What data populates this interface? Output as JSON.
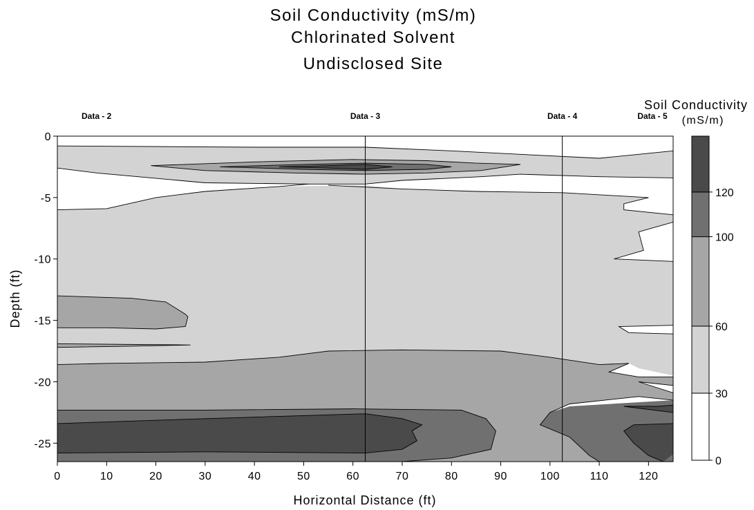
{
  "chart_data": {
    "type": "contour",
    "title_lines": [
      "Soil Conductivity (mS/m)",
      "Chlorinated Solvent",
      "Undisclosed Site"
    ],
    "xlabel": "Horizontal Distance (ft)",
    "ylabel": "Depth (ft)",
    "xlim": [
      0,
      125
    ],
    "ylim": [
      -26.5,
      0
    ],
    "x_ticks": [
      "0",
      "10",
      "20",
      "30",
      "40",
      "50",
      "60",
      "70",
      "80",
      "90",
      "100",
      "110",
      "120"
    ],
    "x_tick_values": [
      0,
      10,
      20,
      30,
      40,
      50,
      60,
      70,
      80,
      90,
      100,
      110,
      120
    ],
    "y_ticks": [
      "0",
      "-5",
      "-10",
      "-15",
      "-20",
      "-25"
    ],
    "y_tick_values": [
      0,
      -5,
      -10,
      -15,
      -20,
      -25
    ],
    "wells": [
      {
        "label": "Data - 2",
        "x": 0
      },
      {
        "label": "Data - 3",
        "x": 62.5
      },
      {
        "label": "Data - 4",
        "x": 102.5
      },
      {
        "label": "Data - 5",
        "x": 125
      }
    ],
    "legend": {
      "title": "Soil Conductivity",
      "unit": "(mS/m)",
      "levels": [
        0,
        30,
        60,
        100,
        120
      ],
      "level_labels": [
        "0",
        "30",
        "60",
        "100",
        "120"
      ],
      "colors": [
        "#ffffff",
        "#d3d3d3",
        "#a6a6a6",
        "#707070",
        "#4a4a4a"
      ]
    },
    "contour_bands": [
      {
        "level_min": 30,
        "level_max": 60,
        "color": "#d3d3d3",
        "points": [
          [
            0,
            -0.8
          ],
          [
            20,
            -0.8
          ],
          [
            40,
            -0.9
          ],
          [
            62.5,
            -0.9
          ],
          [
            80,
            -1.2
          ],
          [
            95,
            -1.5
          ],
          [
            110,
            -1.8
          ],
          [
            125,
            -1.2
          ],
          [
            125,
            -3.4
          ],
          [
            110,
            -3.3
          ],
          [
            94,
            -3.1
          ],
          [
            86,
            -3.3
          ],
          [
            70,
            -3.6
          ],
          [
            62.5,
            -3.9
          ],
          [
            51,
            -3.9
          ],
          [
            30,
            -3.8
          ],
          [
            8,
            -3.0
          ],
          [
            0,
            -2.6
          ]
        ]
      },
      {
        "level_min": 30,
        "level_max": 60,
        "color": "#d3d3d3",
        "points": [
          [
            0,
            -6.0
          ],
          [
            10,
            -5.9
          ],
          [
            20,
            -5.0
          ],
          [
            30,
            -4.5
          ],
          [
            45,
            -4.1
          ],
          [
            62.5,
            -4.0
          ],
          [
            70,
            -4.3
          ],
          [
            85,
            -4.5
          ],
          [
            102.5,
            -4.6
          ],
          [
            120,
            -5.0
          ],
          [
            115,
            -5.5
          ],
          [
            115,
            -6.0
          ],
          [
            125,
            -6.4
          ],
          [
            125,
            -7.0
          ],
          [
            118,
            -7.8
          ],
          [
            119,
            -9.3
          ],
          [
            113,
            -10.0
          ],
          [
            125,
            -10.2
          ],
          [
            125,
            -15.4
          ],
          [
            114,
            -15.5
          ],
          [
            116,
            -16.0
          ],
          [
            125,
            -16.1
          ],
          [
            125,
            -19.5
          ],
          [
            118,
            -18.9
          ],
          [
            116,
            -18.5
          ],
          [
            110,
            -18.6
          ],
          [
            100,
            -18.0
          ],
          [
            90,
            -17.5
          ],
          [
            70,
            -17.4
          ],
          [
            55,
            -17.5
          ],
          [
            45,
            -18.0
          ],
          [
            30,
            -18.4
          ],
          [
            10,
            -18.5
          ],
          [
            0,
            -18.6
          ]
        ]
      },
      {
        "level_min": 60,
        "level_max": 100,
        "color": "#a6a6a6",
        "points": [
          [
            0,
            -18.6
          ],
          [
            10,
            -18.5
          ],
          [
            30,
            -18.4
          ],
          [
            45,
            -18.0
          ],
          [
            55,
            -17.5
          ],
          [
            70,
            -17.4
          ],
          [
            90,
            -17.5
          ],
          [
            100,
            -18.0
          ],
          [
            110,
            -18.6
          ],
          [
            116,
            -18.5
          ],
          [
            112,
            -19.2
          ],
          [
            118,
            -19.6
          ],
          [
            125,
            -19.6
          ],
          [
            125,
            -20.3
          ],
          [
            118,
            -20.0
          ],
          [
            125,
            -20.9
          ],
          [
            125,
            -21.5
          ],
          [
            118,
            -21.2
          ],
          [
            104,
            -21.8
          ],
          [
            100,
            -22.5
          ],
          [
            98,
            -23.5
          ],
          [
            104,
            -24.5
          ],
          [
            108,
            -26.0
          ],
          [
            110,
            -26.5
          ],
          [
            70,
            -26.5
          ],
          [
            80,
            -26.2
          ],
          [
            88,
            -25.5
          ],
          [
            89,
            -24.0
          ],
          [
            87,
            -23.0
          ],
          [
            82,
            -22.3
          ],
          [
            60,
            -22.2
          ],
          [
            30,
            -22.3
          ],
          [
            0,
            -22.3
          ]
        ]
      },
      {
        "level_min": 60,
        "level_max": 100,
        "color": "#a6a6a6",
        "points": [
          [
            0,
            -13.0
          ],
          [
            15,
            -13.2
          ],
          [
            22,
            -13.5
          ],
          [
            26,
            -14.5
          ],
          [
            26.5,
            -14.7
          ],
          [
            26,
            -15.5
          ],
          [
            20,
            -15.7
          ],
          [
            10,
            -15.6
          ],
          [
            0,
            -15.6
          ]
        ]
      },
      {
        "level_min": 60,
        "level_max": 100,
        "color": "#a6a6a6",
        "points": [
          [
            0,
            -16.9
          ],
          [
            27,
            -17.0
          ],
          [
            15,
            -17.1
          ],
          [
            0,
            -17.2
          ]
        ]
      },
      {
        "level_min": 60,
        "level_max": 100,
        "color": "#a6a6a6",
        "points": [
          [
            19,
            -2.4
          ],
          [
            40,
            -2.1
          ],
          [
            60,
            -1.9
          ],
          [
            75,
            -2.0
          ],
          [
            85,
            -2.2
          ],
          [
            94,
            -2.3
          ],
          [
            86,
            -2.8
          ],
          [
            75,
            -3.0
          ],
          [
            62.5,
            -3.1
          ],
          [
            48,
            -3.0
          ],
          [
            30,
            -2.8
          ]
        ]
      },
      {
        "level_min": 100,
        "level_max": 120,
        "color": "#707070",
        "points": [
          [
            0,
            -22.3
          ],
          [
            30,
            -22.3
          ],
          [
            60,
            -22.2
          ],
          [
            82,
            -22.3
          ],
          [
            87,
            -23.0
          ],
          [
            89,
            -24.0
          ],
          [
            88,
            -25.5
          ],
          [
            80,
            -26.2
          ],
          [
            70,
            -26.5
          ],
          [
            0,
            -26.5
          ]
        ]
      },
      {
        "level_min": 100,
        "level_max": 120,
        "color": "#707070",
        "points": [
          [
            104,
            -22.0
          ],
          [
            125,
            -21.5
          ],
          [
            125,
            -26.5
          ],
          [
            110,
            -26.5
          ],
          [
            108,
            -26.0
          ],
          [
            104,
            -24.5
          ],
          [
            98,
            -23.5
          ],
          [
            100,
            -22.5
          ]
        ]
      },
      {
        "level_min": 100,
        "level_max": 120,
        "color": "#707070",
        "points": [
          [
            33,
            -2.5
          ],
          [
            50,
            -2.3
          ],
          [
            62.5,
            -2.2
          ],
          [
            75,
            -2.3
          ],
          [
            80,
            -2.5
          ],
          [
            75,
            -2.7
          ],
          [
            62.5,
            -2.8
          ],
          [
            50,
            -2.7
          ]
        ]
      },
      {
        "level_min": 120,
        "level_max": 140,
        "color": "#4a4a4a",
        "points": [
          [
            0,
            -23.4
          ],
          [
            30,
            -23.0
          ],
          [
            62.5,
            -22.6
          ],
          [
            70,
            -23.0
          ],
          [
            74,
            -23.5
          ],
          [
            72,
            -24.0
          ],
          [
            73,
            -24.8
          ],
          [
            70,
            -25.5
          ],
          [
            62.5,
            -25.8
          ],
          [
            30,
            -25.7
          ],
          [
            0,
            -25.8
          ]
        ]
      },
      {
        "level_min": 120,
        "level_max": 140,
        "color": "#4a4a4a",
        "points": [
          [
            115,
            -22.0
          ],
          [
            122,
            -22.0
          ],
          [
            125,
            -21.9
          ],
          [
            125,
            -25.9
          ],
          [
            123,
            -26.5
          ],
          [
            120,
            -26.0
          ],
          [
            117,
            -25.0
          ],
          [
            115,
            -24.0
          ],
          [
            117,
            -23.5
          ],
          [
            125,
            -23.4
          ],
          [
            125,
            -22.5
          ]
        ]
      },
      {
        "level_min": 120,
        "level_max": 140,
        "color": "#4a4a4a",
        "points": [
          [
            45,
            -2.5
          ],
          [
            55,
            -2.4
          ],
          [
            62.5,
            -2.3
          ],
          [
            68,
            -2.5
          ],
          [
            62.5,
            -2.7
          ],
          [
            55,
            -2.6
          ]
        ]
      }
    ],
    "contour_lines": [
      [
        [
          0,
          -2.6
        ],
        [
          8,
          -3.0
        ],
        [
          30,
          -3.8
        ],
        [
          51,
          -3.9
        ],
        [
          62.5,
          -3.9
        ],
        [
          70,
          -3.6
        ],
        [
          86,
          -3.3
        ],
        [
          94,
          -3.1
        ],
        [
          110,
          -3.3
        ],
        [
          125,
          -3.4
        ]
      ],
      [
        [
          0,
          -0.8
        ],
        [
          40,
          -0.9
        ],
        [
          62.5,
          -0.9
        ],
        [
          80,
          -1.2
        ],
        [
          95,
          -1.5
        ],
        [
          110,
          -1.8
        ],
        [
          125,
          -1.2
        ]
      ],
      [
        [
          0,
          -6.0
        ],
        [
          10,
          -5.9
        ],
        [
          20,
          -5.0
        ],
        [
          30,
          -4.5
        ],
        [
          45,
          -4.1
        ],
        [
          51,
          -3.9
        ]
      ],
      [
        [
          55,
          -4.0
        ],
        [
          70,
          -4.3
        ],
        [
          85,
          -4.5
        ],
        [
          102.5,
          -4.6
        ],
        [
          120,
          -5.0
        ],
        [
          115,
          -5.5
        ],
        [
          115,
          -6.0
        ],
        [
          125,
          -6.4
        ]
      ],
      [
        [
          125,
          -7.0
        ],
        [
          118,
          -7.8
        ],
        [
          119,
          -9.3
        ],
        [
          113,
          -10.0
        ],
        [
          125,
          -10.2
        ]
      ],
      [
        [
          125,
          -15.4
        ],
        [
          114,
          -15.5
        ],
        [
          116,
          -16.0
        ],
        [
          125,
          -16.1
        ]
      ],
      [
        [
          0,
          -18.6
        ],
        [
          10,
          -18.5
        ],
        [
          30,
          -18.4
        ],
        [
          45,
          -18.0
        ],
        [
          55,
          -17.5
        ],
        [
          70,
          -17.4
        ],
        [
          90,
          -17.5
        ],
        [
          100,
          -18.0
        ],
        [
          110,
          -18.6
        ],
        [
          116,
          -18.5
        ],
        [
          112,
          -19.2
        ],
        [
          118,
          -19.6
        ],
        [
          125,
          -19.6
        ]
      ],
      [
        [
          125,
          -20.3
        ],
        [
          118,
          -20.0
        ],
        [
          125,
          -20.9
        ]
      ],
      [
        [
          0,
          -22.3
        ],
        [
          30,
          -22.3
        ],
        [
          60,
          -22.2
        ],
        [
          82,
          -22.3
        ],
        [
          87,
          -23.0
        ],
        [
          89,
          -24.0
        ],
        [
          88,
          -25.5
        ],
        [
          80,
          -26.2
        ],
        [
          70,
          -26.5
        ]
      ],
      [
        [
          125,
          -21.5
        ],
        [
          118,
          -21.2
        ],
        [
          104,
          -21.8
        ],
        [
          100,
          -22.5
        ],
        [
          98,
          -23.5
        ],
        [
          104,
          -24.5
        ],
        [
          108,
          -26.0
        ],
        [
          110,
          -26.5
        ]
      ],
      [
        [
          0,
          -23.4
        ],
        [
          30,
          -23.0
        ],
        [
          62.5,
          -22.6
        ],
        [
          70,
          -23.0
        ],
        [
          74,
          -23.5
        ],
        [
          72,
          -24.0
        ],
        [
          73,
          -24.8
        ],
        [
          70,
          -25.5
        ],
        [
          62.5,
          -25.8
        ],
        [
          30,
          -25.7
        ],
        [
          0,
          -25.8
        ]
      ],
      [
        [
          125,
          -21.9
        ],
        [
          122,
          -22.0
        ],
        [
          115,
          -22.0
        ],
        [
          125,
          -22.5
        ]
      ],
      [
        [
          125,
          -23.4
        ],
        [
          117,
          -23.5
        ],
        [
          115,
          -24.0
        ],
        [
          117,
          -25.0
        ],
        [
          120,
          -26.0
        ],
        [
          123,
          -26.5
        ]
      ],
      [
        [
          0,
          -13.0
        ],
        [
          15,
          -13.2
        ],
        [
          22,
          -13.5
        ],
        [
          26,
          -14.5
        ],
        [
          26.5,
          -14.7
        ],
        [
          26,
          -15.5
        ],
        [
          20,
          -15.7
        ],
        [
          10,
          -15.6
        ],
        [
          0,
          -15.6
        ]
      ],
      [
        [
          0,
          -16.9
        ],
        [
          27,
          -17.0
        ],
        [
          15,
          -17.1
        ],
        [
          0,
          -17.2
        ]
      ],
      [
        [
          19,
          -2.4
        ],
        [
          40,
          -2.1
        ],
        [
          60,
          -1.9
        ],
        [
          75,
          -2.0
        ],
        [
          85,
          -2.2
        ],
        [
          94,
          -2.3
        ],
        [
          86,
          -2.8
        ],
        [
          75,
          -3.0
        ],
        [
          62.5,
          -3.1
        ],
        [
          48,
          -3.0
        ],
        [
          30,
          -2.8
        ],
        [
          19,
          -2.4
        ]
      ],
      [
        [
          33,
          -2.5
        ],
        [
          50,
          -2.3
        ],
        [
          62.5,
          -2.2
        ],
        [
          75,
          -2.3
        ],
        [
          80,
          -2.5
        ],
        [
          75,
          -2.7
        ],
        [
          62.5,
          -2.8
        ],
        [
          50,
          -2.7
        ],
        [
          33,
          -2.5
        ]
      ],
      [
        [
          45,
          -2.5
        ],
        [
          55,
          -2.4
        ],
        [
          62.5,
          -2.3
        ],
        [
          68,
          -2.5
        ],
        [
          62.5,
          -2.7
        ],
        [
          55,
          -2.6
        ],
        [
          45,
          -2.5
        ]
      ]
    ]
  }
}
